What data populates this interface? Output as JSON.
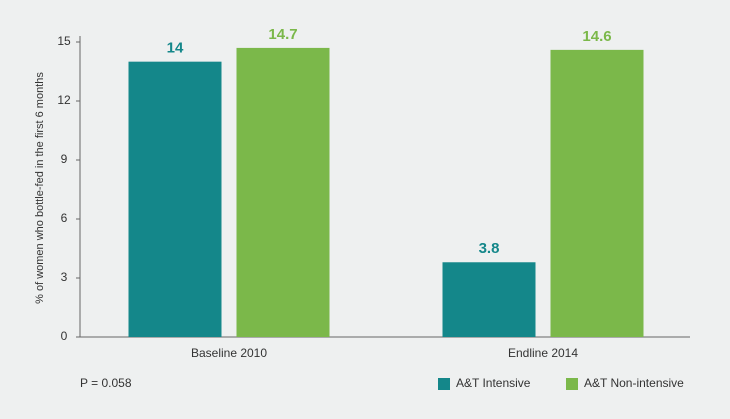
{
  "chart_data": {
    "type": "bar",
    "y_label": "% of women who bottle-fed in the first 6 months",
    "categories": [
      "Baseline 2010",
      "Endline 2014"
    ],
    "series": [
      {
        "name": "A&T Intensive",
        "color": "#14878a",
        "values": [
          14,
          3.8
        ]
      },
      {
        "name": "A&T Non-intensive",
        "color": "#7bb84a",
        "values": [
          14.7,
          14.6
        ]
      }
    ],
    "ylim": [
      0,
      15
    ],
    "yticks": [
      0,
      3,
      6,
      9,
      12,
      15
    ],
    "annotation": "P = 0.058",
    "legend": "bottom-right"
  }
}
